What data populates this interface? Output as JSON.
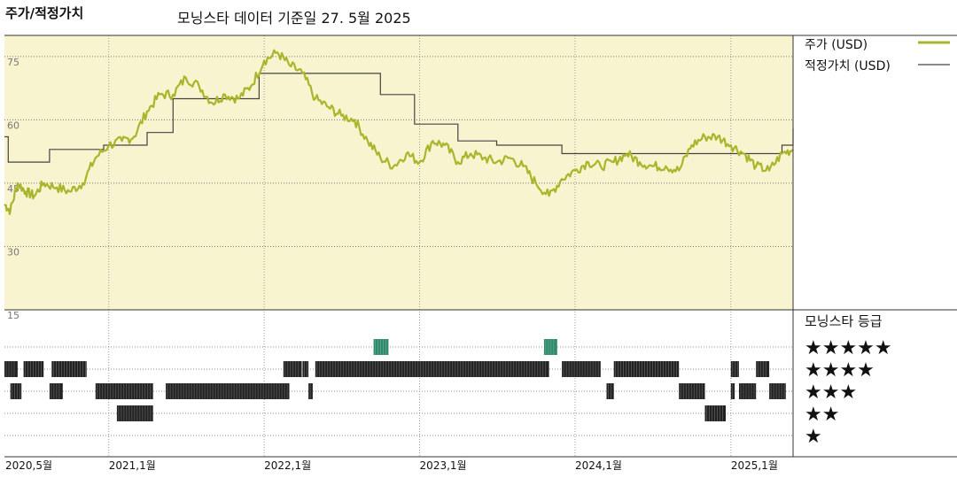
{
  "header": {
    "left_title": "주가/적정가치",
    "subtitle": "모닝스타 데이터 기준일 27. 5월 2025"
  },
  "colors": {
    "price_line": "#a9b52a",
    "fair_value_line": "#444444",
    "plot_bg": "#f8f4cf",
    "star_bar_dark": "#222222",
    "star_bar_green": "#2e8b6a",
    "axis_text": "#777777"
  },
  "legend": {
    "price": "주가 (USD)",
    "fair_value": "적정가치 (USD)",
    "rating_title": "모닝스타 등급",
    "stars": [
      "★★★★★",
      "★★★★",
      "★★★",
      "★★",
      "★"
    ]
  },
  "chart_data": {
    "type": "line",
    "ylim": [
      15,
      80
    ],
    "y_ticks": [
      75,
      60,
      45,
      30,
      15
    ],
    "x_tick_labels": [
      "2020,5월",
      "2021,1월",
      "2022,1월",
      "2023,1월",
      "2024,1월",
      "2025,1월"
    ],
    "x_tick_dates": [
      "2020-05-01",
      "2021-01-01",
      "2022-01-01",
      "2023-01-01",
      "2024-01-01",
      "2025-01-01"
    ],
    "x_range": [
      "2020-05-01",
      "2025-05-27"
    ],
    "series": [
      {
        "name": "주가 (USD)",
        "points": [
          [
            "2020-05-01",
            40
          ],
          [
            "2020-05-15",
            38.5
          ],
          [
            "2020-06-01",
            45
          ],
          [
            "2020-06-20",
            43
          ],
          [
            "2020-07-10",
            42
          ],
          [
            "2020-08-01",
            45
          ],
          [
            "2020-09-01",
            44
          ],
          [
            "2020-10-01",
            43
          ],
          [
            "2020-11-01",
            45
          ],
          [
            "2020-12-01",
            51
          ],
          [
            "2021-01-01",
            54
          ],
          [
            "2021-02-01",
            55
          ],
          [
            "2021-03-01",
            56
          ],
          [
            "2021-04-01",
            62
          ],
          [
            "2021-05-01",
            66
          ],
          [
            "2021-06-01",
            66
          ],
          [
            "2021-07-01",
            70
          ],
          [
            "2021-08-01",
            68
          ],
          [
            "2021-09-01",
            64
          ],
          [
            "2021-10-01",
            66
          ],
          [
            "2021-11-01",
            65
          ],
          [
            "2021-12-01",
            68
          ],
          [
            "2022-01-01",
            74
          ],
          [
            "2022-02-01",
            76
          ],
          [
            "2022-03-01",
            73
          ],
          [
            "2022-04-01",
            71
          ],
          [
            "2022-05-01",
            65
          ],
          [
            "2022-06-01",
            63
          ],
          [
            "2022-07-01",
            61
          ],
          [
            "2022-08-01",
            60
          ],
          [
            "2022-09-01",
            55
          ],
          [
            "2022-10-01",
            51
          ],
          [
            "2022-11-01",
            49
          ],
          [
            "2022-12-01",
            52
          ],
          [
            "2023-01-01",
            50
          ],
          [
            "2023-02-01",
            55
          ],
          [
            "2023-03-01",
            54
          ],
          [
            "2023-04-01",
            50
          ],
          [
            "2023-05-01",
            52
          ],
          [
            "2023-06-01",
            51
          ],
          [
            "2023-07-01",
            50
          ],
          [
            "2023-08-01",
            51
          ],
          [
            "2023-09-01",
            49
          ],
          [
            "2023-10-01",
            45
          ],
          [
            "2023-11-01",
            42
          ],
          [
            "2023-12-01",
            46
          ],
          [
            "2024-01-01",
            48
          ],
          [
            "2024-02-01",
            50
          ],
          [
            "2024-03-01",
            49
          ],
          [
            "2024-04-01",
            50
          ],
          [
            "2024-05-01",
            52
          ],
          [
            "2024-06-01",
            50
          ],
          [
            "2024-07-01",
            49
          ],
          [
            "2024-08-01",
            49
          ],
          [
            "2024-09-01",
            48
          ],
          [
            "2024-10-01",
            54
          ],
          [
            "2024-11-01",
            56
          ],
          [
            "2024-12-01",
            56
          ],
          [
            "2025-01-01",
            54
          ],
          [
            "2025-02-01",
            52
          ],
          [
            "2025-03-01",
            49
          ],
          [
            "2025-04-01",
            48
          ],
          [
            "2025-05-01",
            52
          ],
          [
            "2025-05-27",
            53
          ]
        ]
      },
      {
        "name": "적정가치 (USD)",
        "steps": [
          [
            "2020-05-01",
            56
          ],
          [
            "2020-05-10",
            50
          ],
          [
            "2020-08-15",
            53
          ],
          [
            "2020-12-20",
            54
          ],
          [
            "2021-04-01",
            57
          ],
          [
            "2021-06-01",
            65
          ],
          [
            "2021-12-20",
            71
          ],
          [
            "2022-10-01",
            66
          ],
          [
            "2022-12-20",
            59
          ],
          [
            "2023-04-01",
            55
          ],
          [
            "2023-07-01",
            54
          ],
          [
            "2023-12-01",
            52
          ],
          [
            "2025-05-01",
            54
          ],
          [
            "2025-05-27",
            58
          ]
        ]
      }
    ]
  },
  "rating_data": {
    "rows": [
      {
        "stars": 5,
        "segments": [
          [
            "2022-09-15",
            "2022-10-20"
          ],
          [
            "2023-10-20",
            "2023-11-20"
          ]
        ]
      },
      {
        "stars": 4,
        "segments": [
          [
            "2020-05-01",
            "2020-06-01"
          ],
          [
            "2020-06-15",
            "2020-08-01"
          ],
          [
            "2020-08-20",
            "2020-11-10"
          ],
          [
            "2022-02-15",
            "2022-03-30"
          ],
          [
            "2022-04-01",
            "2022-04-15"
          ],
          [
            "2022-05-01",
            "2023-11-01"
          ],
          [
            "2023-12-01",
            "2024-03-01"
          ],
          [
            "2024-04-01",
            "2024-09-01"
          ],
          [
            "2025-01-01",
            "2025-01-20"
          ],
          [
            "2025-03-01",
            "2025-04-01"
          ]
        ]
      },
      {
        "stars": 3,
        "segments": [
          [
            "2020-05-15",
            "2020-06-10"
          ],
          [
            "2020-08-15",
            "2020-09-15"
          ],
          [
            "2020-12-01",
            "2021-04-15"
          ],
          [
            "2021-05-15",
            "2022-03-01"
          ],
          [
            "2022-04-15",
            "2022-04-25"
          ],
          [
            "2024-03-15",
            "2024-04-01"
          ],
          [
            "2024-09-01",
            "2024-11-01"
          ],
          [
            "2025-01-01",
            "2025-01-10"
          ],
          [
            "2025-01-20",
            "2025-03-01"
          ],
          [
            "2025-04-01",
            "2025-05-10"
          ]
        ]
      },
      {
        "stars": 2,
        "segments": [
          [
            "2021-01-20",
            "2021-04-15"
          ],
          [
            "2024-11-01",
            "2024-12-20"
          ]
        ]
      },
      {
        "stars": 1,
        "segments": []
      }
    ]
  }
}
